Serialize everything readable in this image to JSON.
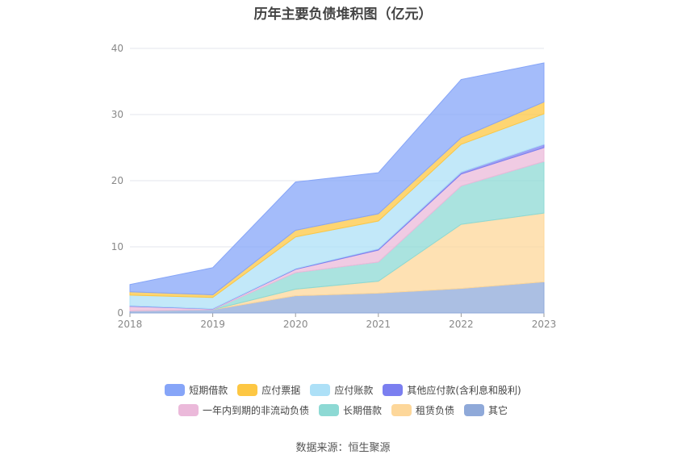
{
  "title": "历年主要负债堆积图（亿元）",
  "source": "数据来源：恒生聚源",
  "chart_data": {
    "type": "area",
    "stacked": true,
    "categories": [
      "2018",
      "2019",
      "2020",
      "2021",
      "2022",
      "2023"
    ],
    "ylim": [
      0,
      40
    ],
    "yticks": [
      0,
      10,
      20,
      30,
      40
    ],
    "grid": true,
    "legend_position": "bottom",
    "series": [
      {
        "name": "其它",
        "color": "#8fa9d9",
        "values": [
          0.3,
          0.5,
          2.6,
          3.0,
          3.7,
          4.7
        ]
      },
      {
        "name": "租赁负债",
        "color": "#fdd79a",
        "values": [
          0.0,
          0.0,
          1.0,
          1.8,
          9.7,
          10.4
        ]
      },
      {
        "name": "长期借款",
        "color": "#8dd9d4",
        "values": [
          0.0,
          0.0,
          2.5,
          2.9,
          5.8,
          7.8
        ]
      },
      {
        "name": "一年内到期的非流动负债",
        "color": "#ebb9da",
        "values": [
          0.7,
          0.1,
          0.5,
          1.8,
          1.8,
          2.1
        ]
      },
      {
        "name": "其他应付款(含利息和股利)",
        "color": "#7b7ff0",
        "values": [
          0.1,
          0.05,
          0.1,
          0.2,
          0.3,
          0.5
        ]
      },
      {
        "name": "应付账款",
        "color": "#ade0f7",
        "values": [
          1.6,
          1.7,
          4.8,
          4.2,
          4.2,
          4.6
        ]
      },
      {
        "name": "应付票据",
        "color": "#fdc743",
        "values": [
          0.5,
          0.4,
          1.0,
          1.1,
          1.0,
          1.8
        ]
      },
      {
        "name": "短期借款",
        "color": "#86a5f8",
        "values": [
          1.1,
          4.1,
          7.3,
          6.2,
          8.8,
          5.9
        ]
      }
    ]
  },
  "legend_rows": [
    [
      {
        "name": "短期借款",
        "color": "#86a5f8"
      },
      {
        "name": "应付票据",
        "color": "#fdc743"
      },
      {
        "name": "应付账款",
        "color": "#ade0f7"
      },
      {
        "name": "其他应付款(含利息和股利)",
        "color": "#7b7ff0"
      }
    ],
    [
      {
        "name": "一年内到期的非流动负债",
        "color": "#ebb9da"
      },
      {
        "name": "长期借款",
        "color": "#8dd9d4"
      },
      {
        "name": "租赁负债",
        "color": "#fdd79a"
      },
      {
        "name": "其它",
        "color": "#8fa9d9"
      }
    ]
  ]
}
